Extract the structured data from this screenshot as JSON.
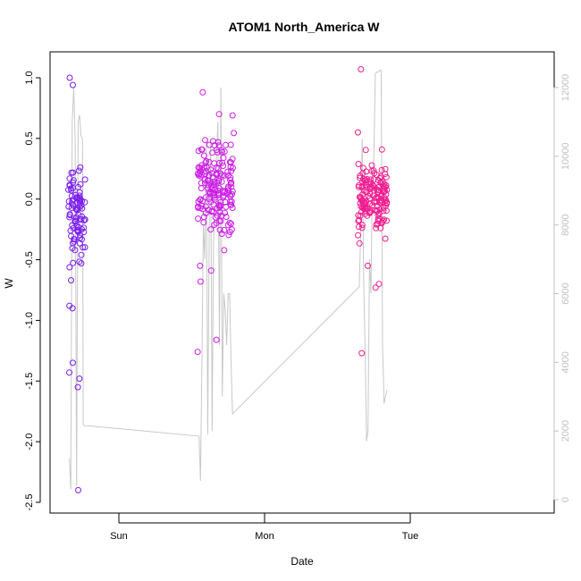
{
  "chart_data": {
    "type": "scatter",
    "title": "ATOM1 North_America W",
    "xlabel": "Date",
    "ylabel": "W",
    "x_ticks": [
      "Sun",
      "Mon",
      "Tue"
    ],
    "ylim": [
      -2.5,
      1.05
    ],
    "y_ticks": [
      "-2.5",
      "-2.0",
      "-1.5",
      "-1.0",
      "-0.5",
      "0.0",
      "0.5",
      "1.0"
    ],
    "y2lim": [
      0,
      12800
    ],
    "y2_ticks": [
      "0",
      "2000",
      "4000",
      "6000",
      "8000",
      "10000",
      "12000"
    ],
    "grid": false,
    "colors": {
      "cluster_sat": "#7a1cf0",
      "cluster_mon": "#cc1ce6",
      "cluster_tue": "#f01c8f",
      "secondary_line": "#c8c8c8",
      "secondary_axis": "#c0c0c0"
    },
    "scatter_clusters": [
      {
        "day_start": -0.35,
        "day_end": -0.23,
        "y_min": -0.7,
        "y_max": 0.4,
        "n": 90,
        "outliers": [
          -2.4,
          -1.55,
          -1.48,
          -1.43,
          -1.35,
          -0.9,
          -0.88,
          -0.67,
          1.0,
          0.94
        ]
      },
      {
        "day_start": 0.54,
        "day_end": 0.79,
        "y_min": -0.45,
        "y_max": 0.65,
        "n": 170,
        "outliers": [
          -1.26,
          -1.16,
          -0.68,
          -0.59,
          -0.55,
          0.88,
          0.7,
          0.69
        ]
      },
      {
        "day_start": 1.64,
        "day_end": 1.84,
        "y_min": -0.45,
        "y_max": 0.5,
        "n": 150,
        "outliers": [
          -1.27,
          -0.73,
          -0.7,
          -0.55,
          1.07,
          0.55
        ]
      }
    ],
    "secondary_series": {
      "x_days": [
        -0.34,
        -0.33,
        -0.32,
        -0.31,
        -0.3,
        -0.29,
        -0.28,
        -0.27,
        -0.26,
        -0.25,
        -0.245,
        -0.24,
        -0.23,
        -0.22,
        -0.21,
        0.55,
        0.56,
        0.57,
        0.58,
        0.59,
        0.6,
        0.61,
        0.62,
        0.63,
        0.64,
        0.65,
        0.66,
        0.67,
        0.68,
        0.69,
        0.7,
        0.71,
        0.72,
        0.73,
        0.74,
        0.75,
        0.76,
        0.77,
        0.78,
        1.65,
        1.66,
        1.67,
        1.68,
        1.69,
        1.7,
        1.71,
        1.72,
        1.73,
        1.74,
        1.75,
        1.76,
        1.77,
        1.78,
        1.79,
        1.8,
        1.81,
        1.82,
        1.83,
        1.84
      ],
      "values": [
        1200,
        300,
        11000,
        12000,
        10500,
        400,
        11000,
        11200,
        10600,
        10500,
        2200,
        2150,
        2150,
        2150,
        2150,
        1850,
        550,
        4000,
        8000,
        7000,
        10500,
        1900,
        8000,
        10500,
        2000,
        7500,
        9000,
        10000,
        11000,
        4500,
        12000,
        3000,
        6000,
        5500,
        4500,
        6000,
        6000,
        4000,
        2500,
        6200,
        7800,
        10500,
        6500,
        4300,
        1700,
        2000,
        7000,
        6000,
        9500,
        10000,
        12400,
        12450,
        12450,
        12500,
        12500,
        4500,
        2800,
        3000,
        3200
      ]
    }
  }
}
